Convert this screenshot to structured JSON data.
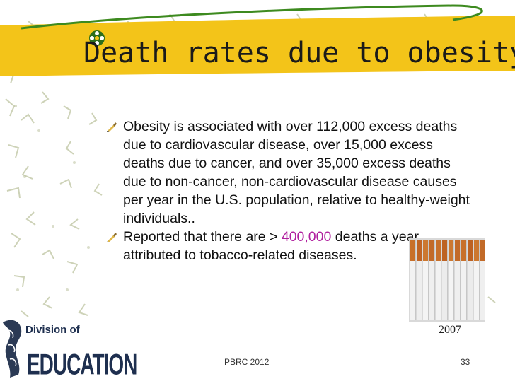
{
  "slide": {
    "title": "Death rates due to obesity",
    "bullets": [
      {
        "text": "Obesity is associated with over 112,000 excess deaths due to cardiovascular disease, over 15,000 excess deaths due to cancer, and over 35,000 excess deaths due to non-cancer, non-cardiovascular disease causes per year in the U.S. population, relative to healthy-weight individuals.."
      },
      {
        "before": "Reported that there are > ",
        "highlight": "400,000",
        "after": " deaths a year attributed to tobacco-related diseases."
      }
    ],
    "photo_caption": "2007",
    "footer_left": "PBRC 2012",
    "page_number": "33",
    "logo": {
      "line1": "Division of",
      "line2": "EDUCATION"
    }
  },
  "colors": {
    "title_band": "#f3c419",
    "highlight": "#b0209f",
    "pattern": "#a8b08a"
  },
  "icons": [
    "bullet-pen-icon",
    "title-flower-icon",
    "cigarettes-photo",
    "pennington-logo"
  ]
}
